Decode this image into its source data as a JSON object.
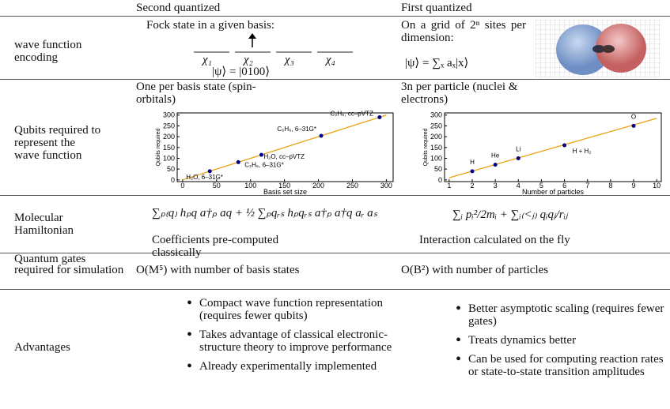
{
  "header": {
    "second": "Second quantized",
    "first": "First quantized"
  },
  "rows": [
    {
      "label": "wave function encoding",
      "second": {
        "text": "Fock state in a given basis:",
        "orbitals": [
          "χ₁",
          "χ₂",
          "χ₃",
          "χ₄"
        ],
        "state": "|ψ⟩ = |0100⟩"
      },
      "first": {
        "text": "On a grid of 2ⁿ sites per dimension:",
        "state": "|ψ⟩ = ∑ₓ aₓ|x⟩"
      }
    },
    {
      "label": "Qubits required to represent the wave function",
      "second": {
        "text": "One per basis state (spin-orbitals)",
        "chart": {
          "type": "scatter",
          "x_label": "Basis set size",
          "y_label": "Qubits required",
          "xlim": [
            -8,
            310
          ],
          "ylim": [
            -8,
            310
          ],
          "xticks": [
            0,
            50,
            100,
            150,
            200,
            250,
            300
          ],
          "yticks": [
            0,
            50,
            100,
            150,
            200,
            250,
            300
          ],
          "x": [
            40,
            82,
            116,
            204,
            290
          ],
          "y": [
            40,
            82,
            116,
            204,
            290
          ],
          "labels": [
            "H₂O, 6–31G*",
            "C₂H₆, 6–31G*",
            "H₂O, cc–pVTZ",
            "C₆H₆, 6–31G*",
            "C₂H₆, cc–pVTZ"
          ],
          "color": "#00008b",
          "fit": {
            "x": [
              0,
              300
            ],
            "y": [
              0,
              300
            ],
            "color": "#e8a317"
          }
        }
      },
      "first": {
        "text": "3n per particle (nuclei & electrons)",
        "chart": {
          "type": "scatter",
          "x_label": "Number of particles",
          "y_label": "Qubits required",
          "xlim": [
            0.8,
            10.2
          ],
          "ylim": [
            -8,
            310
          ],
          "xticks": [
            1,
            2,
            3,
            4,
            5,
            6,
            7,
            8,
            9,
            10
          ],
          "yticks": [
            0,
            50,
            100,
            150,
            200,
            250,
            300
          ],
          "x": [
            2,
            3,
            4,
            6,
            9
          ],
          "y": [
            40,
            70,
            100,
            160,
            250
          ],
          "labels": [
            "H",
            "He",
            "Li",
            "H + H₂",
            "O"
          ],
          "color": "#00008b",
          "fit": {
            "x": [
              1,
              10
            ],
            "y": [
              10,
              285
            ],
            "color": "#e8a317"
          }
        }
      }
    },
    {
      "label": "Molecular Hamiltonian",
      "second": {
        "formula": "∑ₚ₍q₎ hₚq a†ₚ aq + ½ ∑ₚqᵣₛ hₚqᵣₛ a†ₚ a†q aᵣ aₛ",
        "text": "Coefficients pre-computed classically"
      },
      "first": {
        "formula": "∑ᵢ pᵢ²/2mᵢ + ∑ᵢ₍<ⱼ₎ qᵢqⱼ/rᵢⱼ",
        "text": "Interaction calculated on the fly"
      }
    },
    {
      "label": "Quantum gates required for simulation",
      "second": {
        "text": "O(M⁵) with number of basis states"
      },
      "first": {
        "text": "O(B²) with number of particles"
      }
    },
    {
      "label": "Advantages",
      "second": {
        "items": [
          "Compact wave function representation (requires fewer qubits)",
          "Takes advantage of classical electronic-structure theory to improve performance",
          "Already experimentally implemented"
        ]
      },
      "first": {
        "items": [
          "Better asymptotic scaling (requires fewer gates)",
          "Treats dynamics better",
          "Can be used for computing reaction rates or state-to-state transition amplitudes"
        ]
      }
    }
  ]
}
